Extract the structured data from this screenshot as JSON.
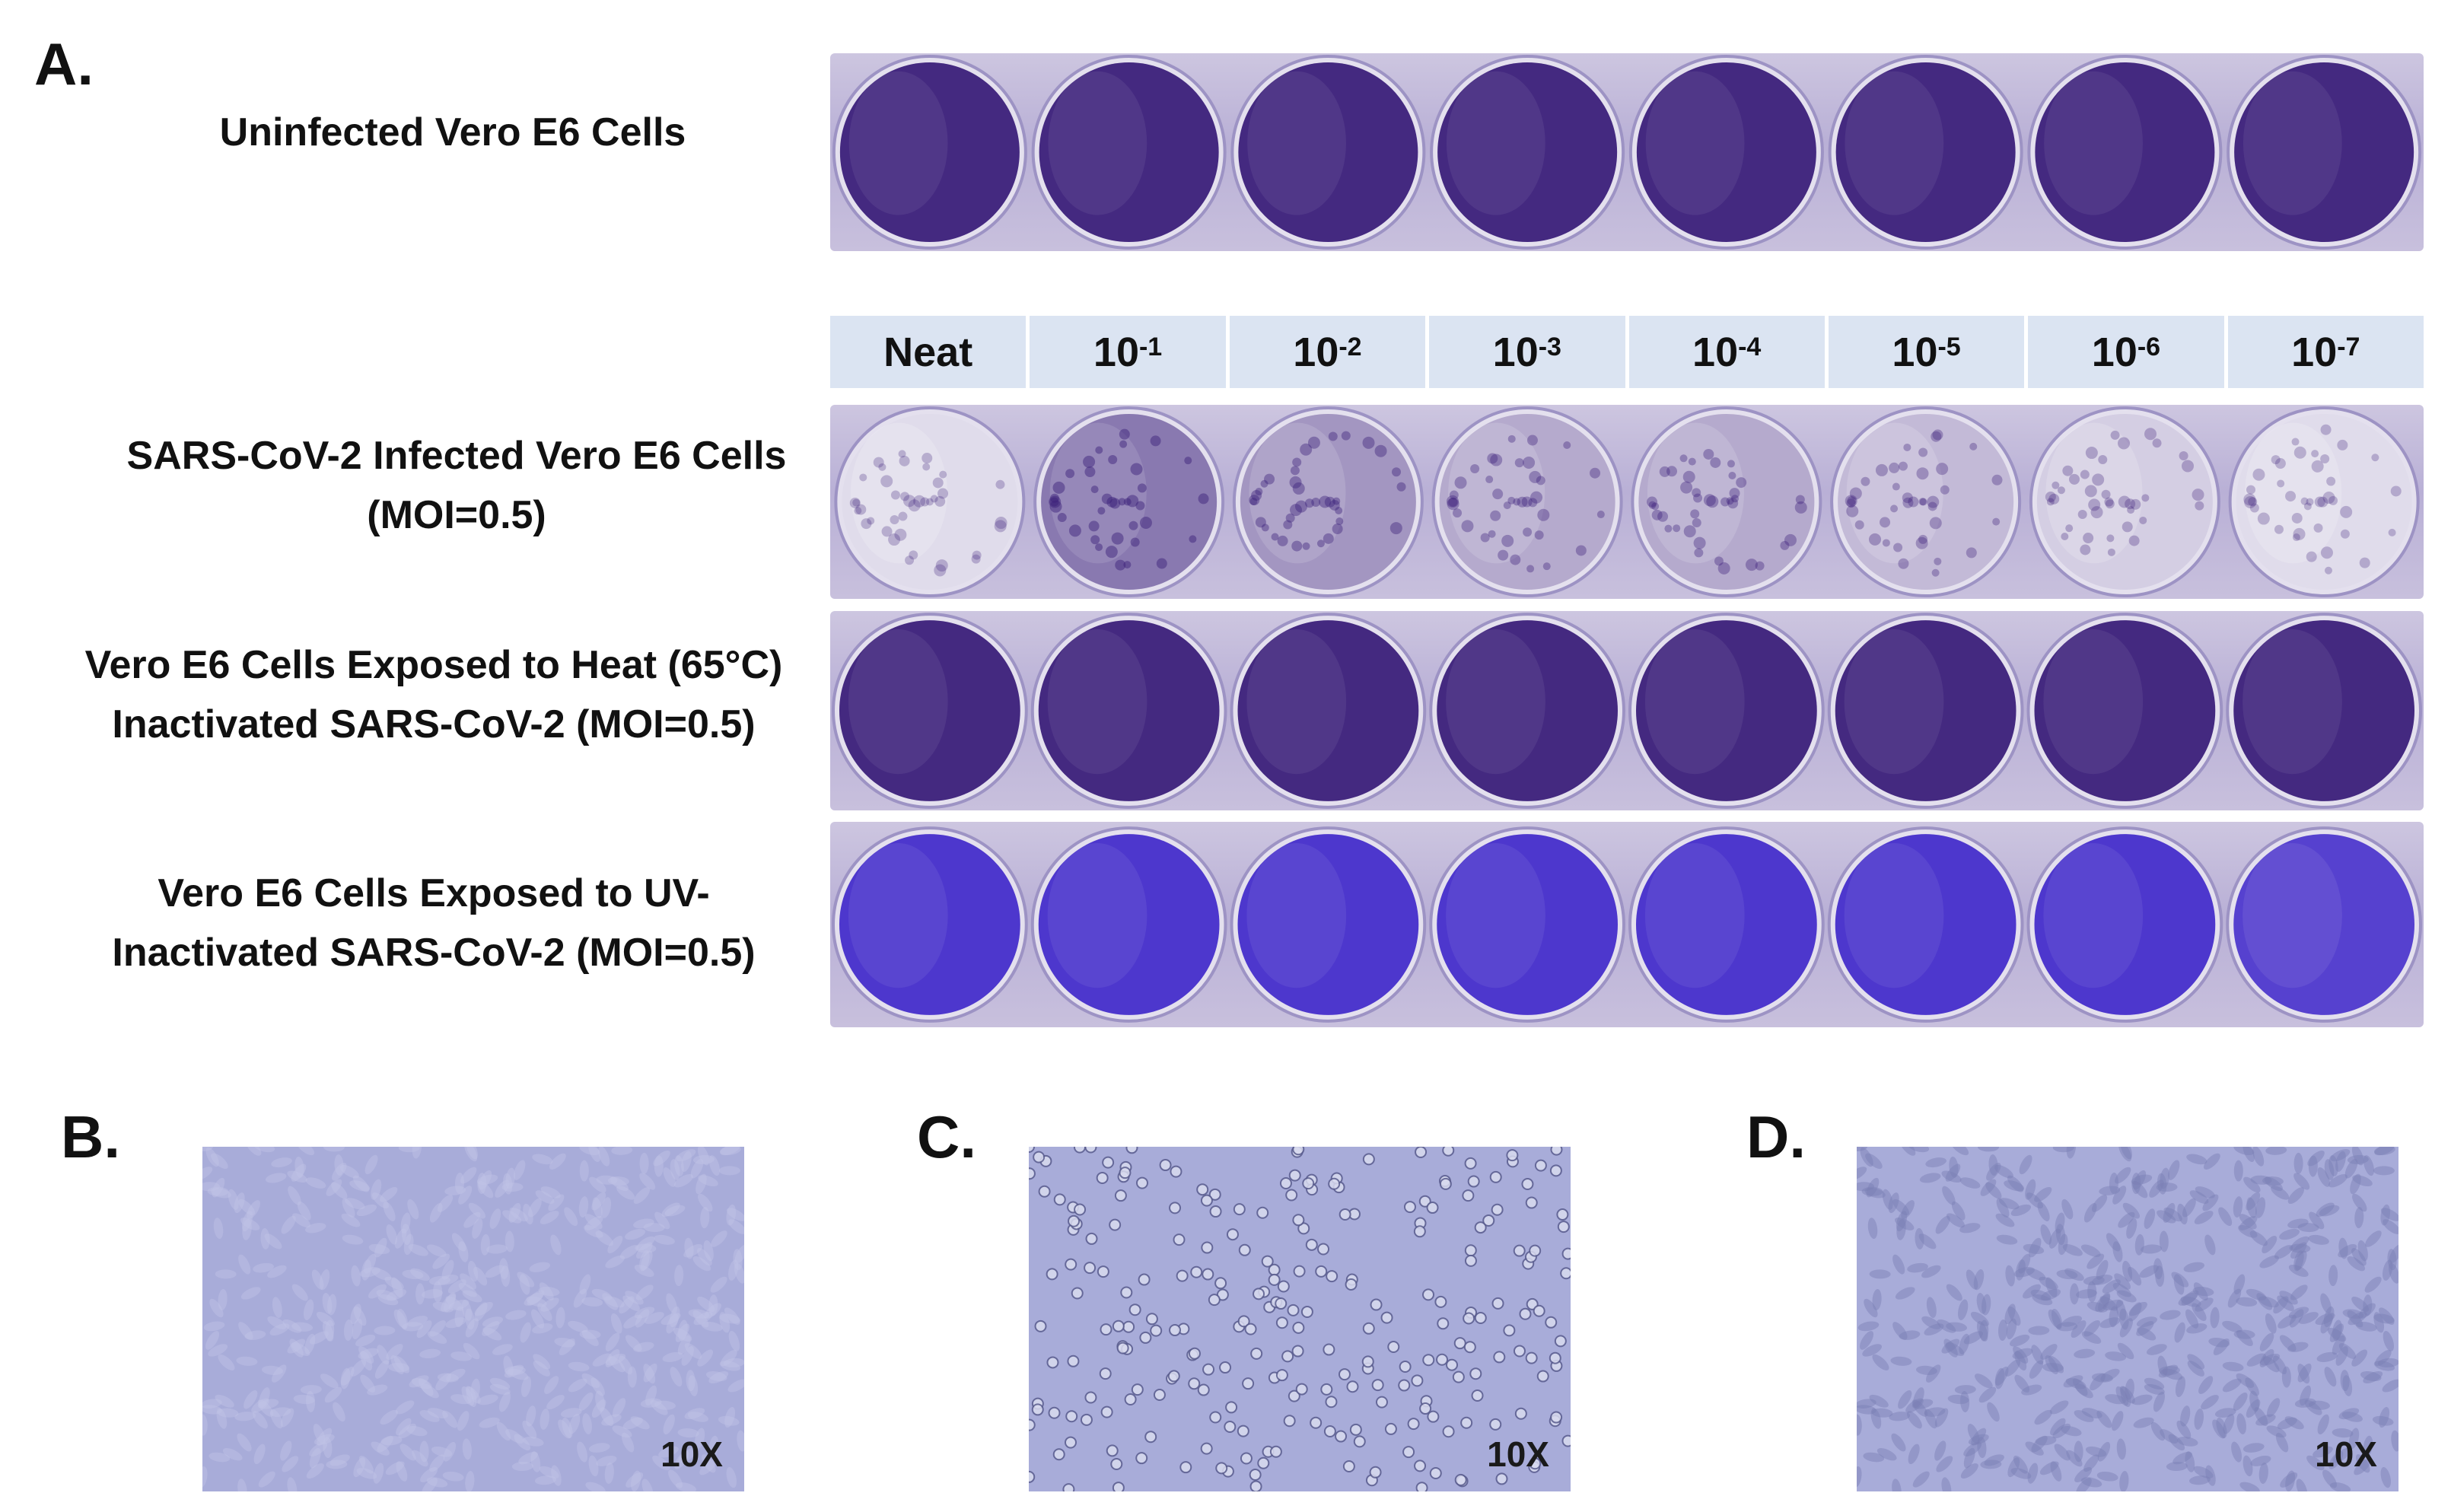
{
  "panels": {
    "a": "A.",
    "b": "B.",
    "c": "C.",
    "d": "D."
  },
  "rows": {
    "uninfected": "Uninfected Vero E6 Cells",
    "infected_line1": "SARS-CoV-2 Infected Vero E6 Cells",
    "infected_line2": "(MOI=0.5)",
    "heat_line1": "Vero E6 Cells Exposed to Heat (65°C)",
    "heat_line2": "Inactivated SARS-CoV-2 (MOI=0.5)",
    "uv_line1": "Vero E6 Cells Exposed to UV-",
    "uv_line2": "Inactivated SARS-CoV-2 (MOI=0.5)"
  },
  "dilutions": [
    {
      "base": "Neat",
      "exp": ""
    },
    {
      "base": "10",
      "exp": "-1"
    },
    {
      "base": "10",
      "exp": "-2"
    },
    {
      "base": "10",
      "exp": "-3"
    },
    {
      "base": "10",
      "exp": "-4"
    },
    {
      "base": "10",
      "exp": "-5"
    },
    {
      "base": "10",
      "exp": "-6"
    },
    {
      "base": "10",
      "exp": "-7"
    }
  ],
  "well_stain": {
    "uninfected": [
      0.95,
      0.95,
      0.95,
      0.95,
      0.95,
      0.95,
      0.95,
      0.95
    ],
    "infected": [
      0.05,
      0.55,
      0.4,
      0.3,
      0.3,
      0.22,
      0.12,
      0.05
    ],
    "heat": [
      0.95,
      0.95,
      0.95,
      0.95,
      0.95,
      0.95,
      0.95,
      0.95
    ],
    "uv": [
      0.9,
      0.9,
      0.9,
      0.9,
      0.9,
      0.9,
      0.9,
      0.85
    ]
  },
  "colors": {
    "stain_dark": "#3b1f7a",
    "stain_blue": "#3c24c9",
    "cleared": "#e9e6f1",
    "micro_bg": "#a8acd9"
  },
  "micrographs": {
    "b_mag": "10X",
    "c_mag": "10X",
    "d_mag": "10X"
  }
}
